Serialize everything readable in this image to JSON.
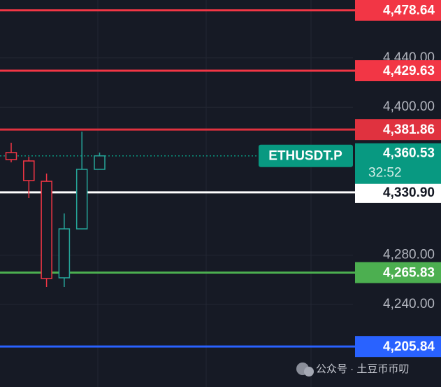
{
  "chart_data": {
    "type": "candlestick",
    "ylim": [
      4173,
      4487
    ],
    "yticks": [
      {
        "value": 4440,
        "label": "4,440.00"
      },
      {
        "value": 4400,
        "label": "4,400.00"
      },
      {
        "value": 4280,
        "label": "4,280.00"
      },
      {
        "value": 4240,
        "label": "4,240.00"
      }
    ],
    "grid": true,
    "up_color": "#26a69a",
    "down_color": "#f23645",
    "open": [
      4363.2,
      4356.4,
      4339.9,
      4261.6,
      4301.3,
      4349.6
    ],
    "high": [
      4371.2,
      4359.8,
      4346.2,
      4313.8,
      4380.2,
      4363.2
    ],
    "low": [
      4355.3,
      4326.3,
      4254.2,
      4254.2,
      4301.0,
      4349.6
    ],
    "close": [
      4357.5,
      4340.5,
      4261.0,
      4301.3,
      4349.6,
      4360.53
    ],
    "levels": [
      {
        "value": 4478.64,
        "label": "4,478.64",
        "color": "#f23645",
        "text_color": "#ffffff"
      },
      {
        "value": 4429.63,
        "label": "4,429.63",
        "color": "#f23645",
        "text_color": "#ffffff"
      },
      {
        "value": 4381.86,
        "label": "4,381.86",
        "color": "#e0323f",
        "text_color": "#ffffff"
      },
      {
        "value": 4330.9,
        "label": "4,330.90",
        "color": "#ffffff",
        "text_color": "#131722"
      },
      {
        "value": 4265.83,
        "label": "4,265.83",
        "color": "#4caf50",
        "text_color": "#ffffff"
      },
      {
        "value": 4205.84,
        "label": "4,205.84",
        "color": "#2962ff",
        "text_color": "#ffffff"
      }
    ],
    "current": {
      "value": 4360.53,
      "label": "4,360.53",
      "symbol": "ETHUSDT.P",
      "countdown": "32:52",
      "color": "#089981"
    },
    "watermark": "公众号 · 土豆币币叨"
  }
}
